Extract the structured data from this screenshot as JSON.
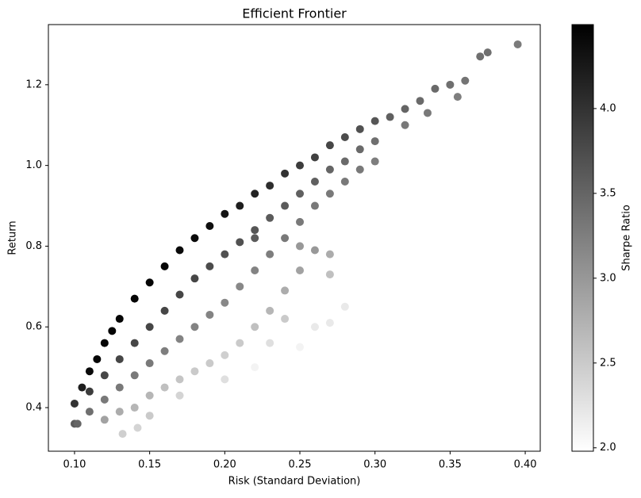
{
  "chart_data": {
    "type": "scatter",
    "title": "Efficient Frontier",
    "x_label": "Risk (Standard Deviation)",
    "y_label": "Return",
    "colorbar_label": "Sharpe Ratio",
    "colormap": [
      "#ffffff",
      "#000000"
    ],
    "clim": [
      1.98,
      4.495
    ],
    "xlim": [
      0.0826,
      0.41
    ],
    "ylim": [
      0.292,
      1.349
    ],
    "xticks": [
      {
        "value": 0.1,
        "label": "0.10"
      },
      {
        "value": 0.15,
        "label": "0.15"
      },
      {
        "value": 0.2,
        "label": "0.20"
      },
      {
        "value": 0.25,
        "label": "0.25"
      },
      {
        "value": 0.3,
        "label": "0.30"
      },
      {
        "value": 0.35,
        "label": "0.35"
      },
      {
        "value": 0.4,
        "label": "0.40"
      }
    ],
    "yticks": [
      {
        "value": 0.4,
        "label": "0.4"
      },
      {
        "value": 0.6,
        "label": "0.6"
      },
      {
        "value": 0.8,
        "label": "0.8"
      },
      {
        "value": 1.0,
        "label": "1.0"
      },
      {
        "value": 1.2,
        "label": "1.2"
      }
    ],
    "cticks": [
      {
        "value": 2.0,
        "label": "2.0"
      },
      {
        "value": 2.5,
        "label": "2.5"
      },
      {
        "value": 3.0,
        "label": "3.0"
      },
      {
        "value": 3.5,
        "label": "3.5"
      },
      {
        "value": 4.0,
        "label": "4.0"
      }
    ],
    "x": [
      0.1,
      0.105,
      0.11,
      0.115,
      0.12,
      0.125,
      0.13,
      0.14,
      0.15,
      0.16,
      0.17,
      0.18,
      0.19,
      0.2,
      0.21,
      0.22,
      0.23,
      0.24,
      0.25,
      0.26,
      0.27,
      0.28,
      0.29,
      0.3,
      0.31,
      0.32,
      0.33,
      0.34,
      0.35,
      0.36,
      0.37,
      0.375,
      0.395,
      0.355,
      0.335,
      0.32,
      0.11,
      0.12,
      0.13,
      0.14,
      0.15,
      0.16,
      0.17,
      0.18,
      0.19,
      0.2,
      0.21,
      0.22,
      0.23,
      0.24,
      0.25,
      0.26,
      0.27,
      0.28,
      0.29,
      0.3,
      0.11,
      0.12,
      0.13,
      0.14,
      0.15,
      0.16,
      0.17,
      0.18,
      0.19,
      0.2,
      0.21,
      0.22,
      0.23,
      0.24,
      0.25,
      0.26,
      0.27,
      0.28,
      0.29,
      0.3,
      0.12,
      0.13,
      0.14,
      0.15,
      0.16,
      0.17,
      0.18,
      0.19,
      0.2,
      0.21,
      0.22,
      0.23,
      0.24,
      0.25,
      0.26,
      0.27,
      0.23,
      0.25,
      0.26,
      0.28,
      0.27,
      0.2,
      0.17,
      0.15,
      0.132,
      0.142,
      0.1,
      0.102,
      0.22,
      0.24,
      0.27,
      0.22,
      0.25
    ],
    "y": [
      0.41,
      0.45,
      0.49,
      0.52,
      0.56,
      0.59,
      0.62,
      0.67,
      0.71,
      0.75,
      0.79,
      0.82,
      0.85,
      0.88,
      0.9,
      0.93,
      0.95,
      0.98,
      1.0,
      1.02,
      1.05,
      1.07,
      1.09,
      1.11,
      1.12,
      1.14,
      1.16,
      1.19,
      1.2,
      1.21,
      1.27,
      1.28,
      1.3,
      1.17,
      1.13,
      1.1,
      0.44,
      0.48,
      0.52,
      0.56,
      0.6,
      0.64,
      0.68,
      0.72,
      0.75,
      0.78,
      0.81,
      0.84,
      0.87,
      0.9,
      0.93,
      0.96,
      0.99,
      1.01,
      1.04,
      1.06,
      0.39,
      0.42,
      0.45,
      0.48,
      0.51,
      0.54,
      0.57,
      0.6,
      0.63,
      0.66,
      0.7,
      0.74,
      0.78,
      0.82,
      0.86,
      0.9,
      0.93,
      0.96,
      0.99,
      1.01,
      0.37,
      0.39,
      0.4,
      0.43,
      0.45,
      0.47,
      0.49,
      0.51,
      0.53,
      0.56,
      0.6,
      0.64,
      0.69,
      0.74,
      0.79,
      0.73,
      0.56,
      0.55,
      0.6,
      0.65,
      0.61,
      0.47,
      0.43,
      0.38,
      0.335,
      0.35,
      0.36,
      0.36,
      0.5,
      0.62,
      0.78,
      0.82,
      0.8
    ],
    "c": [
      4.0,
      4.2,
      4.4,
      4.45,
      4.45,
      4.45,
      4.45,
      4.45,
      4.45,
      4.45,
      4.4,
      4.4,
      4.35,
      4.3,
      4.2,
      4.15,
      4.05,
      4.0,
      3.9,
      3.85,
      3.8,
      3.75,
      3.7,
      3.65,
      3.55,
      3.5,
      3.45,
      3.45,
      3.4,
      3.35,
      3.4,
      3.4,
      3.28,
      3.25,
      3.3,
      3.3,
      3.9,
      3.8,
      3.8,
      3.8,
      3.8,
      3.8,
      3.8,
      3.8,
      3.75,
      3.7,
      3.7,
      3.65,
      3.6,
      3.6,
      3.55,
      3.55,
      3.5,
      3.45,
      3.45,
      3.4,
      3.4,
      3.3,
      3.3,
      3.3,
      3.3,
      3.25,
      3.2,
      3.2,
      3.2,
      3.15,
      3.15,
      3.2,
      3.25,
      3.3,
      3.3,
      3.3,
      3.3,
      3.3,
      3.3,
      3.25,
      2.9,
      2.8,
      2.7,
      2.7,
      2.6,
      2.55,
      2.5,
      2.5,
      2.45,
      2.5,
      2.6,
      2.7,
      2.8,
      2.9,
      3.0,
      2.6,
      2.3,
      2.1,
      2.2,
      2.2,
      2.2,
      2.3,
      2.4,
      2.5,
      2.45,
      2.4,
      3.6,
      3.5,
      2.1,
      2.5,
      2.8,
      3.6,
      3.0
    ]
  }
}
